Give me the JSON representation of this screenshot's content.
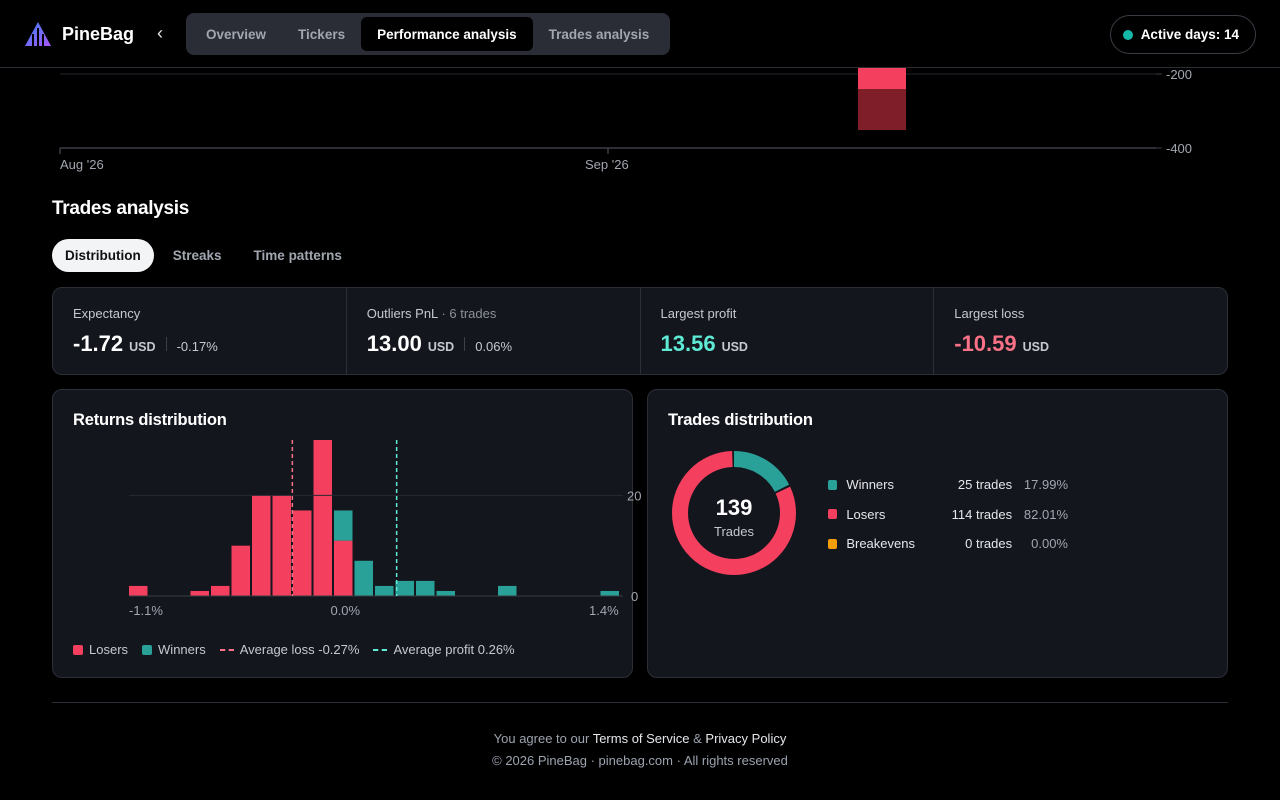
{
  "app": {
    "name": "PineBag"
  },
  "nav": {
    "tabs": [
      {
        "label": "Overview",
        "active": false
      },
      {
        "label": "Tickers",
        "active": false
      },
      {
        "label": "Performance analysis",
        "active": true
      },
      {
        "label": "Trades analysis",
        "active": false
      }
    ],
    "active_days": "Active days: 14"
  },
  "top_chart": {
    "x_ticks": [
      "Aug '26",
      "Sep '26"
    ],
    "y_ticks": [
      "-200",
      "-400"
    ],
    "colors": {
      "loss": "#f43f5e",
      "loss_dark": "#7f1d28"
    }
  },
  "section": {
    "title": "Trades analysis",
    "subtabs": [
      {
        "label": "Distribution",
        "active": true
      },
      {
        "label": "Streaks",
        "active": false
      },
      {
        "label": "Time patterns",
        "active": false
      }
    ]
  },
  "stats": [
    {
      "label": "Expectancy",
      "suffix": "",
      "value": "-1.72",
      "unit": "USD",
      "pct": "-0.17%",
      "tone": "white"
    },
    {
      "label": "Outliers PnL",
      "suffix": "· 6 trades",
      "value": "13.00",
      "unit": "USD",
      "pct": "0.06%",
      "tone": "white"
    },
    {
      "label": "Largest profit",
      "suffix": "",
      "value": "13.56",
      "unit": "USD",
      "pct": "",
      "tone": "green"
    },
    {
      "label": "Largest loss",
      "suffix": "",
      "value": "-10.59",
      "unit": "USD",
      "pct": "",
      "tone": "red"
    }
  ],
  "returns_card": {
    "title": "Returns distribution",
    "legend": {
      "losers": "Losers",
      "winners": "Winners",
      "avg_loss": "Average loss -0.27%",
      "avg_profit": "Average profit 0.26%"
    }
  },
  "chart_data": {
    "type": "bar",
    "stacked": true,
    "x_tick_labels": [
      "-1.1%",
      "0.0%",
      "1.4%"
    ],
    "y_tick_labels": [
      "0",
      "20"
    ],
    "ylim": [
      0,
      31
    ],
    "series": [
      {
        "name": "Losers",
        "color": "#f43f5e",
        "values": [
          2,
          0,
          0,
          1,
          2,
          10,
          20,
          20,
          17,
          31,
          11,
          0,
          0,
          0,
          0,
          0,
          0,
          0,
          0,
          0,
          0,
          0,
          0,
          0
        ]
      },
      {
        "name": "Winners",
        "color": "#2aa198",
        "values": [
          0,
          0,
          0,
          0,
          0,
          0,
          0,
          0,
          0,
          0,
          6,
          7,
          2,
          3,
          3,
          1,
          0,
          0,
          2,
          0,
          0,
          0,
          0,
          1
        ]
      }
    ],
    "avg_loss_pct": -0.27,
    "avg_profit_pct": 0.26,
    "legend_position": "bottom"
  },
  "trades_card": {
    "title": "Trades distribution",
    "total": "139",
    "total_label": "Trades",
    "rows": [
      {
        "name": "Winners",
        "count": "25 trades",
        "pct": "17.99%",
        "color": "#2aa198",
        "fraction": 0.1799
      },
      {
        "name": "Losers",
        "count": "114 trades",
        "pct": "82.01%",
        "color": "#f43f5e",
        "fraction": 0.8201
      },
      {
        "name": "Breakevens",
        "count": "0 trades",
        "pct": "0.00%",
        "color": "#f59e0b",
        "fraction": 0
      }
    ]
  },
  "footer": {
    "prefix": "You agree to our",
    "terms": "Terms of Service",
    "amp": "&",
    "privacy": "Privacy Policy",
    "copyright": "© 2026 PineBag · pinebag.com · All rights reserved"
  }
}
